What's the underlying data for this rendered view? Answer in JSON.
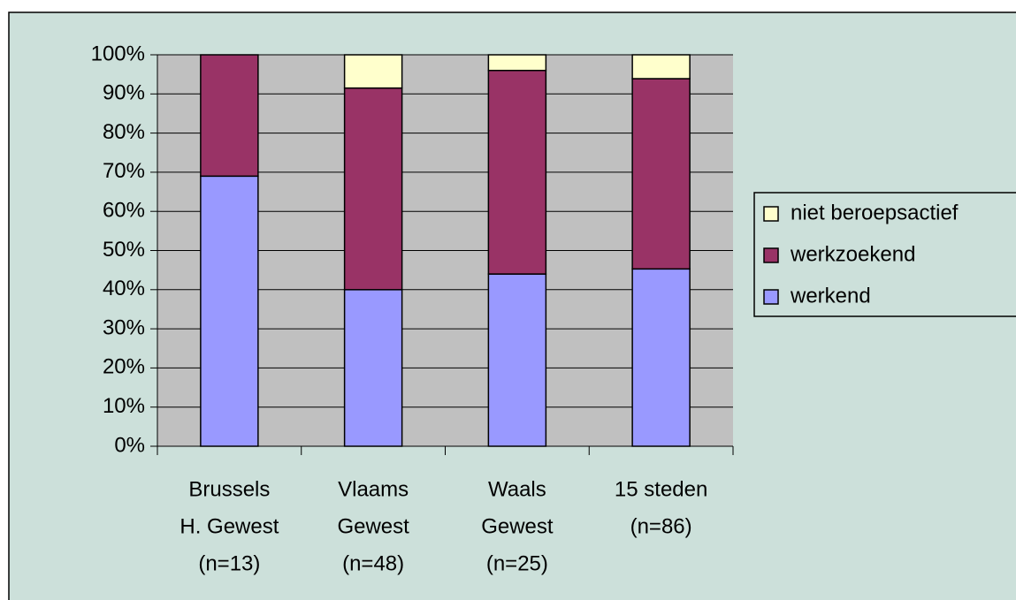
{
  "chart_data": {
    "type": "stacked-bar",
    "categories": [
      [
        "Brussels",
        "H. Gewest",
        "(n=13)"
      ],
      [
        "Vlaams",
        "Gewest",
        "(n=48)"
      ],
      [
        "Waals",
        "Gewest",
        "(n=25)"
      ],
      [
        "15 steden",
        "(n=86)"
      ]
    ],
    "series": [
      {
        "name": "werkend",
        "color": "#9999ff",
        "values": [
          69,
          40,
          44,
          45.3
        ]
      },
      {
        "name": "werkzoekend",
        "color": "#993366",
        "values": [
          31,
          51.5,
          52,
          48.6
        ]
      },
      {
        "name": "niet beroepsactief",
        "color": "#ffffcc",
        "values": [
          0,
          8.5,
          4,
          6.1
        ]
      }
    ],
    "ylim": [
      0,
      100
    ],
    "yticks": [
      {
        "value": 0,
        "label": "0%"
      },
      {
        "value": 10,
        "label": "10%"
      },
      {
        "value": 20,
        "label": "20%"
      },
      {
        "value": 30,
        "label": "30%"
      },
      {
        "value": 40,
        "label": "40%"
      },
      {
        "value": 50,
        "label": "50%"
      },
      {
        "value": 60,
        "label": "60%"
      },
      {
        "value": 70,
        "label": "70%"
      },
      {
        "value": 80,
        "label": "80%"
      },
      {
        "value": 90,
        "label": "90%"
      },
      {
        "value": 100,
        "label": "100%"
      }
    ],
    "grid": true,
    "legend": "right",
    "background": "#cce0da",
    "plot_background": "#c0c0c0"
  }
}
